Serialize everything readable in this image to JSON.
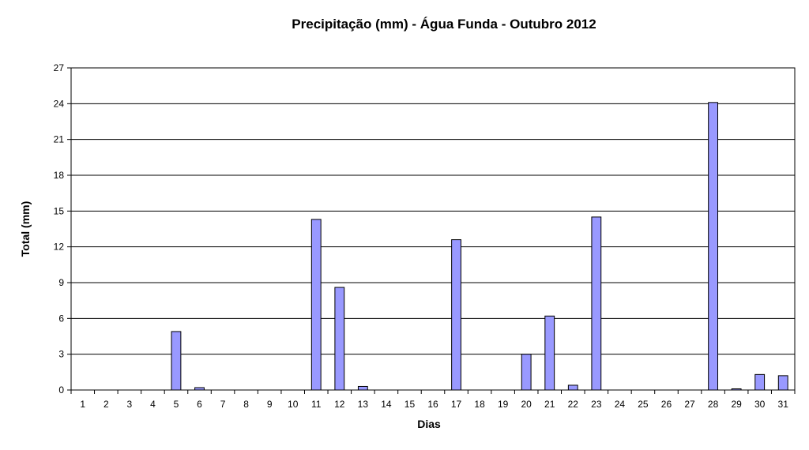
{
  "chart_data": {
    "type": "bar",
    "title": "Precipitação (mm) - Água Funda - Outubro 2012",
    "xlabel": "Dias",
    "ylabel": "Total (mm)",
    "categories": [
      "1",
      "2",
      "3",
      "4",
      "5",
      "6",
      "7",
      "8",
      "9",
      "10",
      "11",
      "12",
      "13",
      "14",
      "15",
      "16",
      "17",
      "18",
      "19",
      "20",
      "21",
      "22",
      "23",
      "24",
      "25",
      "26",
      "27",
      "28",
      "29",
      "30",
      "31"
    ],
    "values": [
      0,
      0,
      0,
      0,
      4.9,
      0.2,
      0,
      0,
      0,
      0,
      14.3,
      8.6,
      0.3,
      0,
      0,
      0,
      12.6,
      0,
      0,
      3.0,
      6.2,
      0.4,
      14.5,
      0,
      0,
      0,
      0,
      24.1,
      0.1,
      1.3,
      1.2
    ],
    "ylim": [
      0,
      27
    ],
    "yticks": [
      "0",
      "3",
      "6",
      "9",
      "12",
      "15",
      "18",
      "21",
      "24",
      "27"
    ],
    "grid": true,
    "legend": "none",
    "colors": {
      "bar_fill": "#9999ff",
      "bar_stroke": "#000000",
      "grid": "#000000"
    }
  }
}
